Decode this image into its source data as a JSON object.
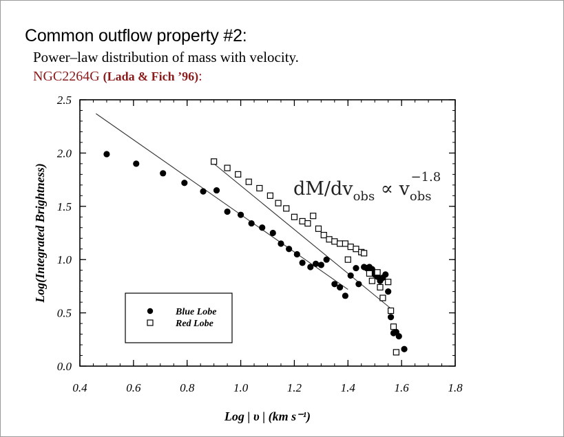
{
  "slide": {
    "heading": "Common outflow property #2:",
    "subtitle": "Power–law distribution of mass with velocity.",
    "object": "NGC2264G",
    "reference": "(Lada & Fich ’96)",
    "reference_suffix": ":"
  },
  "annotation": {
    "main": "dM/dv",
    "sub_obs": "obs",
    "prop": " ∝ v",
    "exponent": "−1.8"
  },
  "chart_data": {
    "type": "scatter",
    "xlabel": "Log | υ | (km s⁻¹)",
    "ylabel": "Log(Integrated Brightness)",
    "xlim": [
      0.4,
      1.8
    ],
    "ylim": [
      0.0,
      2.5
    ],
    "xticks": [
      0.4,
      0.6,
      0.8,
      1.0,
      1.2,
      1.4,
      1.6,
      1.8
    ],
    "yticks": [
      0.0,
      0.5,
      1.0,
      1.5,
      2.0,
      2.5
    ],
    "xtick_labels": [
      "0.4",
      "0.6",
      "0.8",
      "1.0",
      "1.2",
      "1.4",
      "1.6",
      "1.8"
    ],
    "ytick_labels": [
      "0.0",
      "0.5",
      "1.0",
      "1.5",
      "2.0",
      "2.5"
    ],
    "grid": false,
    "legend": "bottom-left",
    "series": [
      {
        "name": "Blue Lobe",
        "marker": "filled-circle",
        "color": "#000000",
        "points": [
          [
            0.5,
            1.99
          ],
          [
            0.61,
            1.9
          ],
          [
            0.71,
            1.81
          ],
          [
            0.79,
            1.72
          ],
          [
            0.86,
            1.64
          ],
          [
            0.91,
            1.65
          ],
          [
            0.95,
            1.45
          ],
          [
            1.0,
            1.42
          ],
          [
            1.04,
            1.34
          ],
          [
            1.08,
            1.3
          ],
          [
            1.12,
            1.25
          ],
          [
            1.15,
            1.15
          ],
          [
            1.18,
            1.1
          ],
          [
            1.21,
            1.05
          ],
          [
            1.23,
            0.97
          ],
          [
            1.26,
            0.93
          ],
          [
            1.28,
            0.96
          ],
          [
            1.3,
            0.95
          ],
          [
            1.32,
            1.0
          ],
          [
            1.35,
            0.77
          ],
          [
            1.37,
            0.74
          ],
          [
            1.39,
            0.66
          ],
          [
            1.41,
            0.85
          ],
          [
            1.43,
            0.92
          ],
          [
            1.44,
            0.77
          ],
          [
            1.46,
            0.93
          ],
          [
            1.47,
            0.92
          ],
          [
            1.48,
            0.93
          ],
          [
            1.49,
            0.91
          ],
          [
            1.5,
            0.86
          ],
          [
            1.51,
            0.84
          ],
          [
            1.52,
            0.8
          ],
          [
            1.53,
            0.83
          ],
          [
            1.54,
            0.86
          ],
          [
            1.55,
            0.7
          ],
          [
            1.56,
            0.46
          ],
          [
            1.57,
            0.31
          ],
          [
            1.58,
            0.32
          ],
          [
            1.59,
            0.28
          ],
          [
            1.61,
            0.16
          ]
        ],
        "fit_line": [
          [
            0.46,
            2.37
          ],
          [
            1.4,
            0.72
          ]
        ]
      },
      {
        "name": "Red Lobe",
        "marker": "open-square",
        "color": "#000000",
        "points": [
          [
            0.9,
            1.92
          ],
          [
            0.95,
            1.86
          ],
          [
            0.99,
            1.8
          ],
          [
            1.03,
            1.73
          ],
          [
            1.07,
            1.67
          ],
          [
            1.11,
            1.6
          ],
          [
            1.14,
            1.53
          ],
          [
            1.17,
            1.48
          ],
          [
            1.2,
            1.4
          ],
          [
            1.23,
            1.36
          ],
          [
            1.25,
            1.34
          ],
          [
            1.27,
            1.41
          ],
          [
            1.29,
            1.29
          ],
          [
            1.31,
            1.23
          ],
          [
            1.33,
            1.19
          ],
          [
            1.35,
            1.17
          ],
          [
            1.37,
            1.15
          ],
          [
            1.39,
            1.15
          ],
          [
            1.4,
            1.0
          ],
          [
            1.41,
            1.12
          ],
          [
            1.43,
            1.1
          ],
          [
            1.45,
            1.07
          ],
          [
            1.46,
            1.06
          ],
          [
            1.48,
            0.87
          ],
          [
            1.49,
            0.8
          ],
          [
            1.51,
            0.88
          ],
          [
            1.52,
            0.74
          ],
          [
            1.53,
            0.64
          ],
          [
            1.55,
            0.79
          ],
          [
            1.56,
            0.52
          ],
          [
            1.57,
            0.37
          ],
          [
            1.58,
            0.13
          ]
        ],
        "fit_line": [
          [
            0.9,
            1.9
          ],
          [
            1.57,
            0.52
          ]
        ]
      }
    ]
  }
}
